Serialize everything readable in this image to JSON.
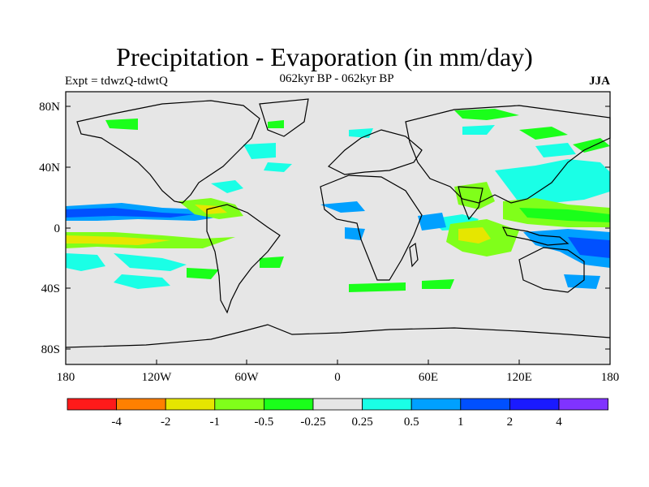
{
  "title": "Precipitation - Evaporation (in mm/day)",
  "subtitle": "062kyr BP - 062kyr BP",
  "left_label": "Expt = tdwzQ-tdwtQ",
  "right_label": "JJA",
  "lat_ticks": [
    "80N",
    "40N",
    "0",
    "40S",
    "80S"
  ],
  "lon_ticks": [
    "180",
    "120W",
    "60W",
    "0",
    "60E",
    "120E",
    "180"
  ],
  "colorbar": {
    "colors": [
      "#ff1a1a",
      "#ff8000",
      "#e6e600",
      "#80ff1a",
      "#1aff1a",
      "#e6e6e6",
      "#1affe6",
      "#00a0ff",
      "#0050ff",
      "#1a1aff",
      "#8033ff"
    ],
    "labels": [
      "-4",
      "-2",
      "-1",
      "-0.5",
      "-0.25",
      "0.25",
      "0.5",
      "1",
      "2",
      "4"
    ]
  },
  "ocean_color": "#e6e6e6"
}
